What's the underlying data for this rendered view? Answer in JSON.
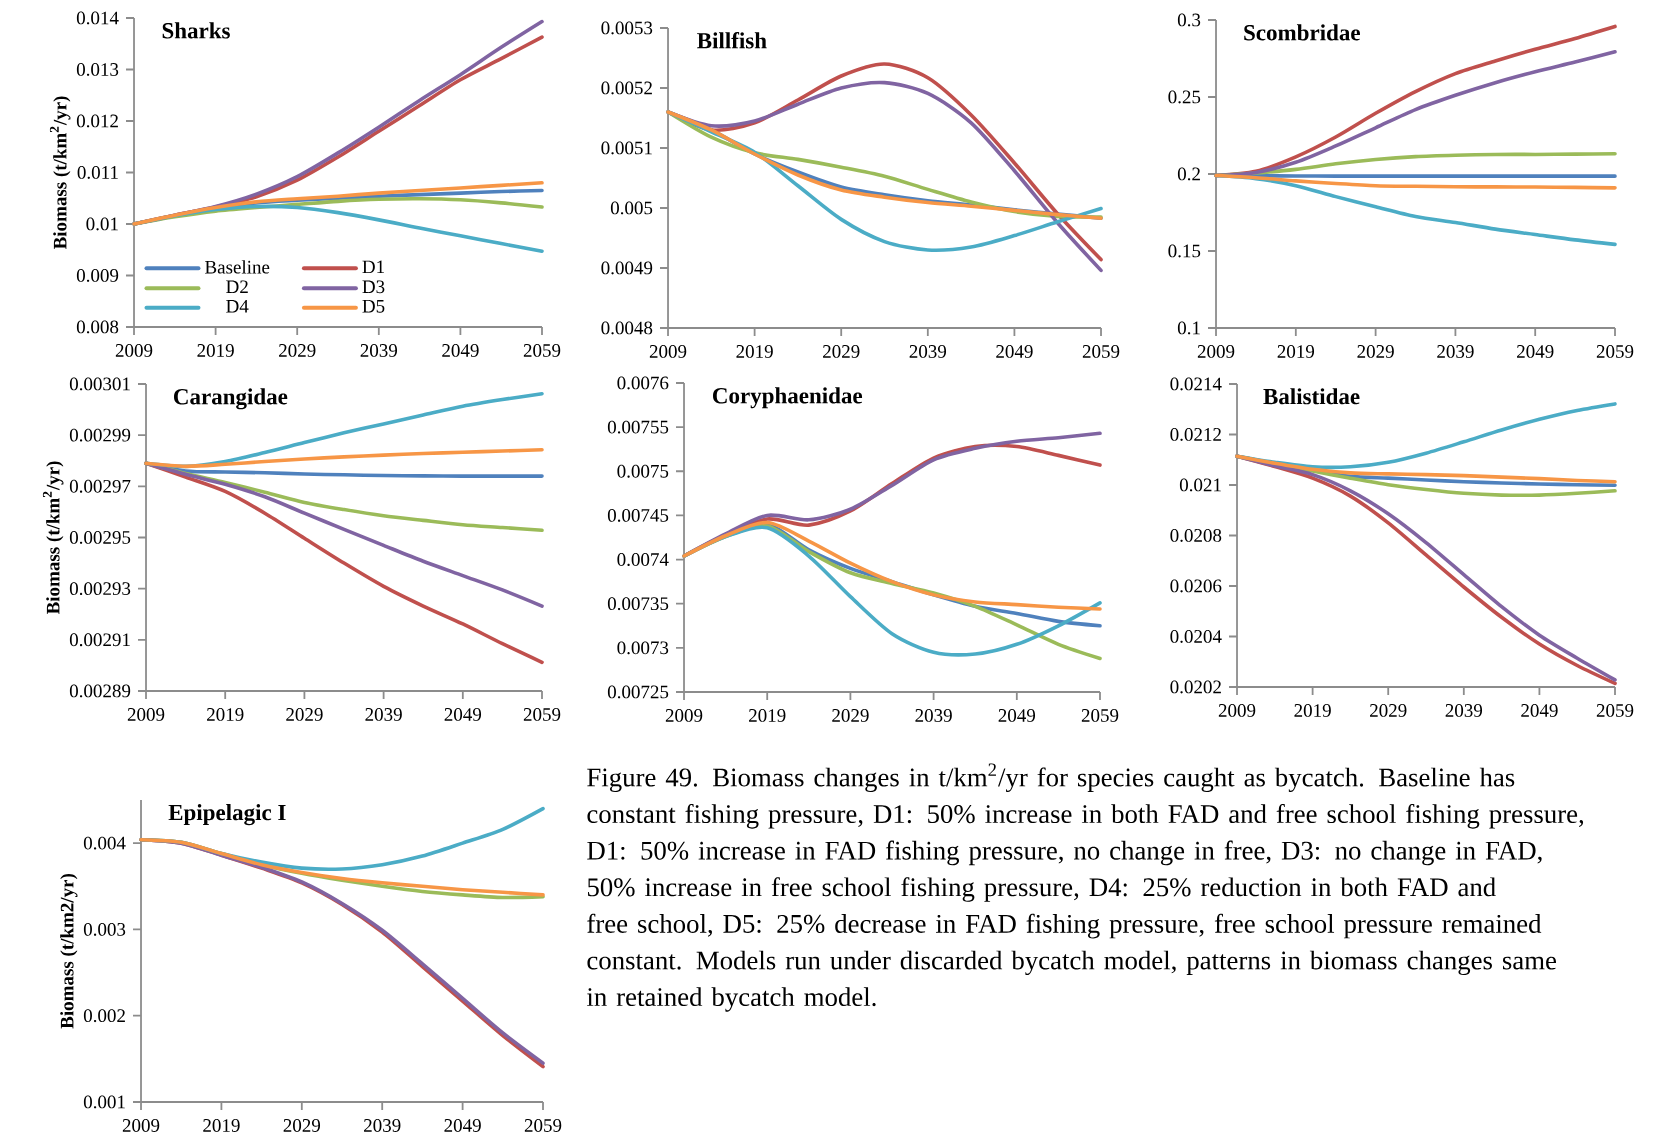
{
  "chart_data": [
    {
      "type": "line",
      "title": "Sharks",
      "ylabel": "Biomass (t/km$^{2}$/yr)",
      "x": [
        2009,
        2014,
        2019,
        2024,
        2029,
        2034,
        2039,
        2044,
        2049,
        2054,
        2059
      ],
      "xlim": [
        2009,
        2059
      ],
      "xticks": [
        2009,
        2019,
        2029,
        2039,
        2049,
        2059
      ],
      "ylim": [
        0.008,
        0.014
      ],
      "yticks": [
        0.008,
        0.009,
        0.01,
        0.011,
        0.012,
        0.013,
        0.014
      ],
      "legend": "bottom left",
      "series": [
        {
          "name": "Baseline",
          "color": "#4f81bd",
          "values": [
            0.01,
            0.01016,
            0.01031,
            0.01041,
            0.01046,
            0.0105,
            0.01054,
            0.01057,
            0.0106,
            0.01063,
            0.01065
          ]
        },
        {
          "name": "D1",
          "color": "#c0504d",
          "values": [
            0.01,
            0.01017,
            0.01033,
            0.01053,
            0.01085,
            0.0113,
            0.0118,
            0.0123,
            0.0128,
            0.01321,
            0.01363
          ]
        },
        {
          "name": "D2",
          "color": "#9bbb59",
          "values": [
            0.01,
            0.01014,
            0.01025,
            0.01032,
            0.01038,
            0.01044,
            0.01048,
            0.01049,
            0.01047,
            0.01041,
            0.01033
          ]
        },
        {
          "name": "D3",
          "color": "#8064a2",
          "values": [
            0.01,
            0.01017,
            0.01034,
            0.01058,
            0.01092,
            0.01138,
            0.01188,
            0.0124,
            0.0129,
            0.01343,
            0.01393
          ]
        },
        {
          "name": "D4",
          "color": "#4bacc6",
          "values": [
            0.01,
            0.01016,
            0.01028,
            0.01034,
            0.01032,
            0.01022,
            0.01008,
            0.00992,
            0.00977,
            0.00962,
            0.00947
          ]
        },
        {
          "name": "D5",
          "color": "#f79646",
          "values": [
            0.01,
            0.01017,
            0.01032,
            0.01043,
            0.01049,
            0.01054,
            0.0106,
            0.01065,
            0.0107,
            0.01075,
            0.0108
          ]
        }
      ]
    },
    {
      "type": "line",
      "title": "Billfish",
      "x": [
        2009,
        2014,
        2019,
        2024,
        2029,
        2034,
        2039,
        2044,
        2049,
        2054,
        2059
      ],
      "xlim": [
        2009,
        2059
      ],
      "xticks": [
        2009,
        2019,
        2029,
        2039,
        2049,
        2059
      ],
      "ylim": [
        0.0048,
        0.0053
      ],
      "yticks": [
        0.0048,
        0.0049,
        0.005,
        0.0051,
        0.0052,
        0.0053
      ],
      "series": [
        {
          "color": "#4f81bd",
          "values": [
            0.00516,
            0.00513,
            0.00509,
            0.00506,
            0.005035,
            0.005022,
            0.005012,
            0.005005,
            0.004997,
            0.00499,
            0.004983
          ]
        },
        {
          "color": "#c0504d",
          "values": [
            0.00516,
            0.00513,
            0.005142,
            0.00518,
            0.00522,
            0.00524,
            0.005217,
            0.005155,
            0.005075,
            0.00499,
            0.004914
          ]
        },
        {
          "color": "#9bbb59",
          "values": [
            0.00516,
            0.005118,
            0.005092,
            0.005081,
            0.005068,
            0.005053,
            0.005031,
            0.00501,
            0.004994,
            0.004986,
            0.004985
          ]
        },
        {
          "color": "#8064a2",
          "values": [
            0.00516,
            0.005137,
            0.005145,
            0.005173,
            0.0052,
            0.005209,
            0.005191,
            0.005142,
            0.005062,
            0.004975,
            0.004896
          ]
        },
        {
          "color": "#4bacc6",
          "values": [
            0.00516,
            0.005127,
            0.005093,
            0.005037,
            0.004981,
            0.004944,
            0.00493,
            0.004935,
            0.004954,
            0.004977,
            0.004999
          ]
        },
        {
          "color": "#f79646",
          "values": [
            0.00516,
            0.00513,
            0.00509,
            0.005055,
            0.00503,
            0.005018,
            0.005009,
            0.005003,
            0.004996,
            0.004989,
            0.004983
          ]
        }
      ]
    },
    {
      "type": "line",
      "title": "Scombridae",
      "x": [
        2009,
        2014,
        2019,
        2024,
        2029,
        2034,
        2039,
        2044,
        2049,
        2054,
        2059
      ],
      "xlim": [
        2009,
        2059
      ],
      "xticks": [
        2009,
        2019,
        2029,
        2039,
        2049,
        2059
      ],
      "ylim": [
        0.1,
        0.3
      ],
      "yticks": [
        0.1,
        0.15,
        0.2,
        0.25,
        0.3
      ],
      "series": [
        {
          "color": "#4f81bd",
          "values": [
            0.199,
            0.1988,
            0.1987,
            0.1986,
            0.1986,
            0.1986,
            0.1986,
            0.1986,
            0.1986,
            0.1986,
            0.1986
          ]
        },
        {
          "color": "#c0504d",
          "values": [
            0.199,
            0.2017,
            0.2111,
            0.224,
            0.2394,
            0.2535,
            0.2652,
            0.2734,
            0.281,
            0.288,
            0.2958
          ]
        },
        {
          "color": "#9bbb59",
          "values": [
            0.199,
            0.2006,
            0.203,
            0.2066,
            0.2094,
            0.2113,
            0.2122,
            0.2127,
            0.2127,
            0.2129,
            0.2131
          ]
        },
        {
          "color": "#8064a2",
          "values": [
            0.199,
            0.201,
            0.2076,
            0.2182,
            0.23,
            0.2418,
            0.2511,
            0.2593,
            0.2664,
            0.2727,
            0.2793
          ]
        },
        {
          "color": "#4bacc6",
          "values": [
            0.199,
            0.197,
            0.1924,
            0.1853,
            0.1787,
            0.1724,
            0.1685,
            0.1642,
            0.1607,
            0.1572,
            0.1543
          ]
        },
        {
          "color": "#f79646",
          "values": [
            0.199,
            0.1976,
            0.1955,
            0.1938,
            0.1924,
            0.192,
            0.1917,
            0.1916,
            0.1915,
            0.1913,
            0.191
          ]
        }
      ]
    },
    {
      "type": "line",
      "title": "Carangidae",
      "ylabel": "Biomass (t/km$^{2}$/yr)",
      "x": [
        2009,
        2014,
        2019,
        2024,
        2029,
        2034,
        2039,
        2044,
        2049,
        2054,
        2059
      ],
      "xlim": [
        2009,
        2059
      ],
      "xticks": [
        2009,
        2019,
        2029,
        2039,
        2049,
        2059
      ],
      "ylim": [
        0.00289,
        0.00301
      ],
      "yticks": [
        0.00289,
        0.00291,
        0.00293,
        0.00295,
        0.00297,
        0.00299,
        0.00301
      ],
      "series": [
        {
          "color": "#4f81bd",
          "values": [
            0.002979,
            0.002976,
            0.0029756,
            0.0029753,
            0.0029748,
            0.0029745,
            0.0029742,
            0.0029741,
            0.002974,
            0.002974,
            0.002974
          ]
        },
        {
          "color": "#c0504d",
          "values": [
            0.002979,
            0.0029736,
            0.002968,
            0.0029595,
            0.0029497,
            0.00294,
            0.0029309,
            0.0029232,
            0.0029162,
            0.0029085,
            0.0029012
          ]
        },
        {
          "color": "#9bbb59",
          "values": [
            0.002979,
            0.002975,
            0.0029715,
            0.0029677,
            0.0029637,
            0.0029609,
            0.0029585,
            0.0029567,
            0.002955,
            0.0029539,
            0.0029528
          ]
        },
        {
          "color": "#8064a2",
          "values": [
            0.002979,
            0.0029747,
            0.0029708,
            0.0029659,
            0.0029595,
            0.0029532,
            0.0029469,
            0.0029407,
            0.0029351,
            0.0029295,
            0.0029232
          ]
        },
        {
          "color": "#4bacc6",
          "values": [
            0.002979,
            0.0029778,
            0.0029797,
            0.0029832,
            0.0029871,
            0.0029909,
            0.0029944,
            0.0029979,
            0.0030013,
            0.0030039,
            0.0030062
          ]
        },
        {
          "color": "#f79646",
          "values": [
            0.002979,
            0.0029778,
            0.0029786,
            0.0029797,
            0.0029807,
            0.0029815,
            0.0029822,
            0.0029828,
            0.0029833,
            0.0029838,
            0.0029843
          ]
        }
      ]
    },
    {
      "type": "line",
      "title": "Coryphaenidae",
      "x": [
        2009,
        2014,
        2019,
        2024,
        2029,
        2034,
        2039,
        2044,
        2049,
        2054,
        2059
      ],
      "xlim": [
        2009,
        2059
      ],
      "xticks": [
        2009,
        2019,
        2029,
        2039,
        2049,
        2059
      ],
      "ylim": [
        0.00725,
        0.0076
      ],
      "yticks": [
        0.00725,
        0.0073,
        0.00735,
        0.0074,
        0.00745,
        0.0075,
        0.00755,
        0.0076
      ],
      "series": [
        {
          "color": "#4f81bd",
          "values": [
            0.007404,
            0.007427,
            0.00744,
            0.007411,
            0.00739,
            0.007375,
            0.00736,
            0.007347,
            0.007339,
            0.00733,
            0.007325
          ]
        },
        {
          "color": "#c0504d",
          "values": [
            0.007404,
            0.007428,
            0.007446,
            0.007439,
            0.007455,
            0.007486,
            0.007515,
            0.007528,
            0.007528,
            0.007518,
            0.007507
          ]
        },
        {
          "color": "#9bbb59",
          "values": [
            0.007404,
            0.007426,
            0.007438,
            0.007409,
            0.007385,
            0.007373,
            0.007362,
            0.007347,
            0.007326,
            0.007304,
            0.007288
          ]
        },
        {
          "color": "#8064a2",
          "values": [
            0.007404,
            0.007429,
            0.00745,
            0.007445,
            0.007457,
            0.007484,
            0.007513,
            0.007526,
            0.007534,
            0.007538,
            0.007543
          ]
        },
        {
          "color": "#4bacc6",
          "values": [
            0.007404,
            0.007426,
            0.007436,
            0.007404,
            0.007358,
            0.007316,
            0.007295,
            0.007293,
            0.007304,
            0.007325,
            0.007351
          ]
        },
        {
          "color": "#f79646",
          "values": [
            0.007404,
            0.007427,
            0.007442,
            0.007421,
            0.007396,
            0.007375,
            0.00736,
            0.007352,
            0.007349,
            0.007346,
            0.007344
          ]
        }
      ]
    },
    {
      "type": "line",
      "title": "Balistidae",
      "x": [
        2009,
        2014,
        2019,
        2024,
        2029,
        2034,
        2039,
        2044,
        2049,
        2054,
        2059
      ],
      "xlim": [
        2009,
        2059
      ],
      "xticks": [
        2009,
        2019,
        2029,
        2039,
        2049,
        2059
      ],
      "ylim": [
        0.0202,
        0.0214
      ],
      "yticks": [
        0.0202,
        0.0204,
        0.0206,
        0.0208,
        0.021,
        0.0212,
        0.0214
      ],
      "series": [
        {
          "color": "#4f81bd",
          "values": [
            0.021114,
            0.021085,
            0.021058,
            0.021034,
            0.021027,
            0.02102,
            0.021013,
            0.021008,
            0.021004,
            0.021001,
            0.020999
          ]
        },
        {
          "color": "#c0504d",
          "values": [
            0.021114,
            0.021073,
            0.021027,
            0.020956,
            0.02085,
            0.020723,
            0.020596,
            0.020476,
            0.02037,
            0.020285,
            0.020214
          ]
        },
        {
          "color": "#9bbb59",
          "values": [
            0.021114,
            0.021083,
            0.021055,
            0.021027,
            0.021001,
            0.020982,
            0.020967,
            0.02096,
            0.02096,
            0.020967,
            0.020977
          ]
        },
        {
          "color": "#8064a2",
          "values": [
            0.021114,
            0.021076,
            0.021041,
            0.020977,
            0.020886,
            0.020772,
            0.020645,
            0.020518,
            0.020405,
            0.020314,
            0.020228
          ]
        },
        {
          "color": "#4bacc6",
          "values": [
            0.021114,
            0.02109,
            0.021072,
            0.021072,
            0.02109,
            0.021126,
            0.021171,
            0.021218,
            0.02126,
            0.021295,
            0.021321
          ]
        },
        {
          "color": "#f79646",
          "values": [
            0.021114,
            0.021086,
            0.021062,
            0.021048,
            0.021044,
            0.021041,
            0.021037,
            0.021031,
            0.021025,
            0.021018,
            0.021013
          ]
        }
      ]
    },
    {
      "type": "line",
      "title": "Epipelagic I",
      "ylabel": "Biomass (t/km2/yr)",
      "x": [
        2009,
        2014,
        2019,
        2024,
        2029,
        2034,
        2039,
        2044,
        2049,
        2054,
        2059
      ],
      "xlim": [
        2009,
        2059
      ],
      "xticks": [
        2009,
        2019,
        2029,
        2039,
        2049,
        2059
      ],
      "ylim": [
        0.001,
        0.0045
      ],
      "yticks": [
        0.001,
        0.002,
        0.003,
        0.004
      ],
      "annotations": [
        "Figure 49. Biomass changes in t/km$^{2}$/yr for species caught as bycatch. Baseline has constant fishing pressure, D1: 50% increase in both FAD and free school fishing pressure, D1: 50% increase in FAD fishing pressure, no change in free, D3: no change in FAD, 50% increase in free school fishing pressure, D4: 25% reduction in both FAD and free school, D5: 25% decrease in FAD fishing pressure, free school pressure remained constant. Models run under discarded bycatch model, patterns in biomass changes same in retained bycatch model."
      ],
      "series": [
        {
          "color": "#4f81bd",
          "values": [
            null,
            null,
            null,
            null,
            null,
            null,
            null,
            null,
            null,
            null,
            null
          ]
        },
        {
          "color": "#c0504d",
          "values": [
            0.00404,
            0.004,
            0.00386,
            0.00371,
            0.00354,
            0.00329,
            0.00297,
            0.00257,
            0.00217,
            0.00177,
            0.00141
          ]
        },
        {
          "color": "#9bbb59",
          "values": [
            0.00404,
            0.00401,
            0.00388,
            0.00375,
            0.00365,
            0.00357,
            0.0035,
            0.00344,
            0.0034,
            0.00337,
            0.00338
          ]
        },
        {
          "color": "#8064a2",
          "values": [
            0.00404,
            0.004,
            0.00386,
            0.00372,
            0.00355,
            0.0033,
            0.00299,
            0.0026,
            0.0022,
            0.0018,
            0.00145
          ]
        },
        {
          "color": "#4bacc6",
          "values": [
            0.00404,
            0.00401,
            0.00388,
            0.00378,
            0.00371,
            0.0037,
            0.00375,
            0.00385,
            0.004,
            0.00416,
            0.0044
          ]
        },
        {
          "color": "#f79646",
          "values": [
            0.00404,
            0.00401,
            0.00388,
            0.00375,
            0.00366,
            0.00359,
            0.00354,
            0.0035,
            0.00346,
            0.00343,
            0.0034
          ]
        }
      ]
    }
  ]
}
